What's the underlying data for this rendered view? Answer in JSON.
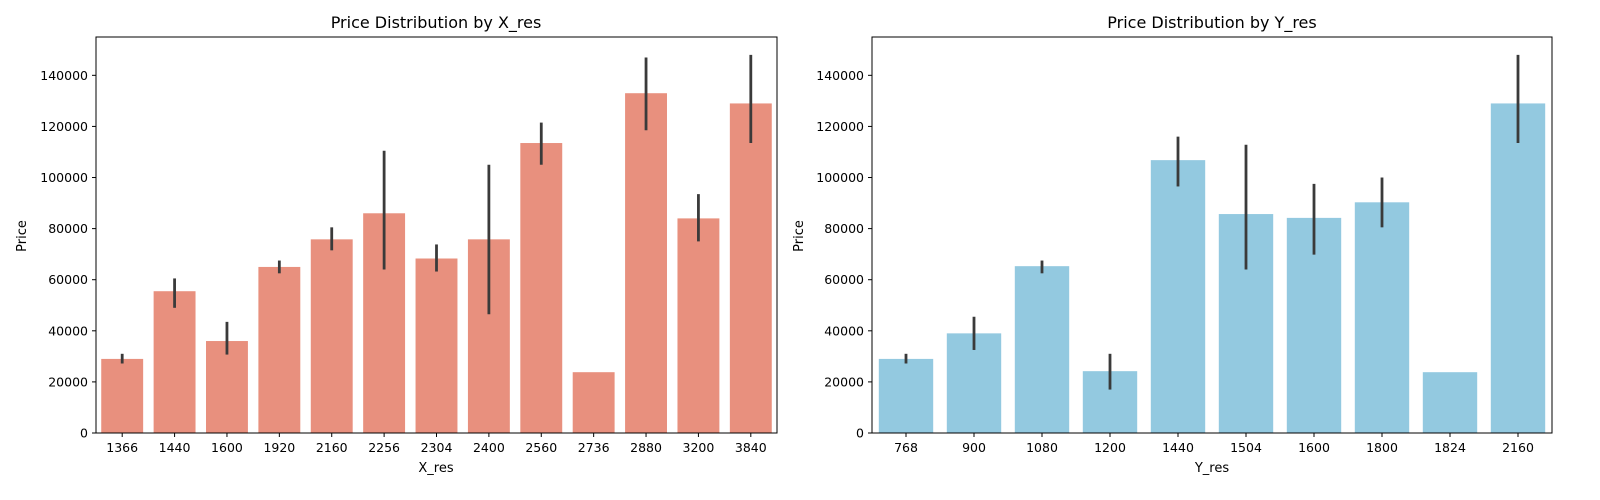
{
  "chart_data": [
    {
      "type": "bar",
      "title": "Price Distribution by X_res",
      "xlabel": "X_res",
      "ylabel": "Price",
      "ylim": [
        0,
        155000
      ],
      "yticks": [
        0,
        20000,
        40000,
        60000,
        80000,
        100000,
        120000,
        140000
      ],
      "grid": false,
      "bar_color": "#e8907e",
      "error_bar_color": "#3a3a3a",
      "categories": [
        "1366",
        "1440",
        "1600",
        "1920",
        "2160",
        "2256",
        "2304",
        "2400",
        "2560",
        "2736",
        "2880",
        "3200",
        "3840"
      ],
      "values": [
        29000,
        55500,
        36000,
        65000,
        75800,
        86000,
        68300,
        75800,
        113500,
        23800,
        133000,
        84000,
        129000
      ],
      "error_low": [
        27200,
        49000,
        30700,
        62500,
        71500,
        64000,
        63200,
        46500,
        105000,
        null,
        118500,
        75000,
        113500
      ],
      "error_high": [
        31000,
        60500,
        43500,
        67500,
        80500,
        110500,
        73800,
        105000,
        121500,
        null,
        147000,
        93500,
        148000
      ]
    },
    {
      "type": "bar",
      "title": "Price Distribution by Y_res",
      "xlabel": "Y_res",
      "ylabel": "Price",
      "ylim": [
        0,
        155000
      ],
      "yticks": [
        0,
        20000,
        40000,
        60000,
        80000,
        100000,
        120000,
        140000
      ],
      "grid": false,
      "bar_color": "#93c9e0",
      "error_bar_color": "#3a3a3a",
      "categories": [
        "768",
        "900",
        "1080",
        "1200",
        "1440",
        "1504",
        "1600",
        "1800",
        "1824",
        "2160"
      ],
      "values": [
        29000,
        39000,
        65300,
        24200,
        106800,
        85700,
        84200,
        90300,
        23800,
        129000
      ],
      "error_low": [
        27200,
        32500,
        62500,
        17000,
        96500,
        64000,
        69800,
        80500,
        null,
        113500
      ],
      "error_high": [
        31000,
        45500,
        67500,
        31000,
        116000,
        112800,
        97500,
        100000,
        null,
        148000
      ]
    }
  ]
}
